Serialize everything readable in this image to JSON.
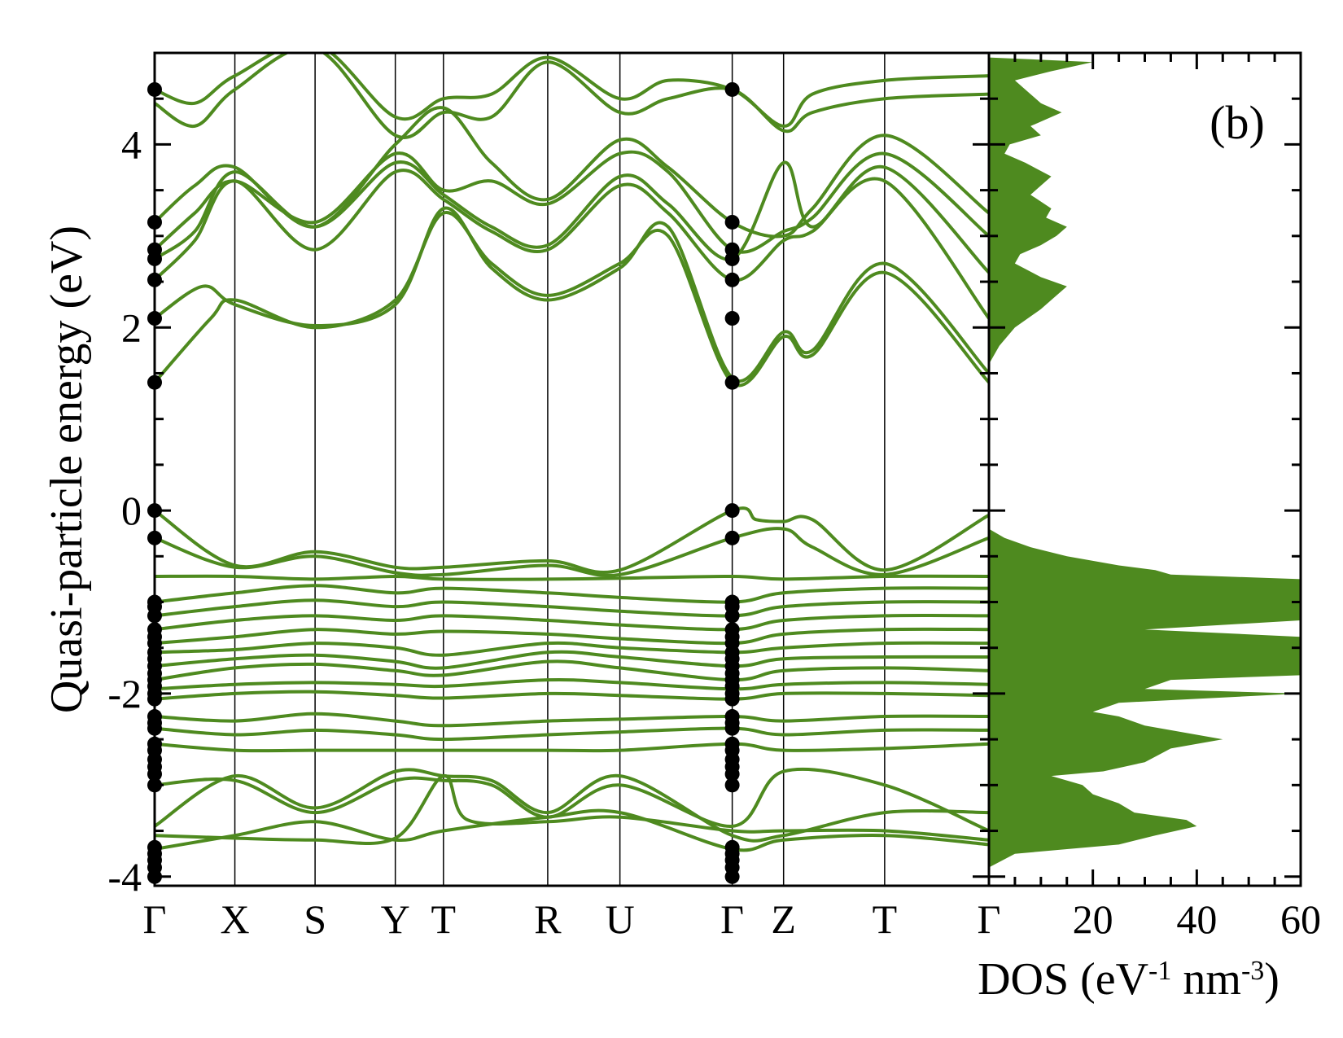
{
  "chart_data": [
    {
      "type": "line",
      "subtype": "band-structure",
      "ylabel": "Quasi-particle energy (eV)",
      "ylim": [
        -4.1,
        5.0
      ],
      "yticks": [
        -4,
        -2,
        0,
        2,
        4
      ],
      "ytick_labels": [
        "-4",
        "-2",
        "0",
        "2",
        "4"
      ],
      "kpoints": [
        {
          "label": "Γ",
          "pos": 0.0
        },
        {
          "label": "X",
          "pos": 0.5
        },
        {
          "label": "S",
          "pos": 1.0
        },
        {
          "label": "Y",
          "pos": 1.5
        },
        {
          "label": "T",
          "pos": 1.8
        },
        {
          "label": "R",
          "pos": 2.45
        },
        {
          "label": "U",
          "pos": 2.9
        },
        {
          "label": "Γ",
          "pos": 3.6
        },
        {
          "label": "Z",
          "pos": 3.92
        },
        {
          "label": "T",
          "pos": 4.55
        },
        {
          "label": "Γ",
          "pos": 5.2
        }
      ],
      "line_color": "#4e8a1f",
      "gamma_points": {
        "color": "#000000",
        "energies": [
          4.6,
          3.15,
          2.85,
          2.75,
          2.52,
          2.1,
          1.4,
          0.0,
          -0.3,
          -1.0,
          -1.05,
          -1.15,
          -1.3,
          -1.38,
          -1.45,
          -1.55,
          -1.62,
          -1.7,
          -1.78,
          -1.85,
          -1.92,
          -2.0,
          -2.06,
          -2.25,
          -2.32,
          -2.38,
          -2.55,
          -2.62,
          -2.72,
          -2.8,
          -2.88,
          -3.0,
          -3.68,
          -3.75,
          -3.82,
          -3.9,
          -4.0
        ]
      },
      "bands": [
        {
          "x": [
            0,
            0.35,
            0.5,
            1.0,
            1.5,
            1.8,
            2.1,
            2.45,
            2.9,
            3.2,
            3.6,
            3.92,
            4.1,
            4.55,
            5.2
          ],
          "y": [
            1.4,
            2.1,
            2.3,
            2.0,
            2.3,
            3.25,
            2.7,
            2.35,
            2.7,
            3.0,
            1.4,
            1.9,
            1.7,
            2.6,
            1.4
          ]
        },
        {
          "x": [
            0,
            0.3,
            0.5,
            1.0,
            1.5,
            1.8,
            2.1,
            2.45,
            2.9,
            3.2,
            3.6,
            3.92,
            4.1,
            4.55,
            5.2
          ],
          "y": [
            2.1,
            2.45,
            2.25,
            2.02,
            2.25,
            3.3,
            2.65,
            2.3,
            2.65,
            3.1,
            1.45,
            1.95,
            1.75,
            2.7,
            1.5
          ]
        },
        {
          "x": [
            0,
            0.25,
            0.5,
            1.0,
            1.5,
            1.8,
            2.1,
            2.45,
            2.9,
            3.2,
            3.6,
            3.92,
            4.1,
            4.55,
            5.2
          ],
          "y": [
            2.52,
            2.95,
            3.6,
            2.85,
            3.7,
            3.4,
            3.05,
            2.85,
            3.55,
            3.25,
            2.52,
            2.95,
            3.05,
            3.6,
            2.1
          ]
        },
        {
          "x": [
            0,
            0.25,
            0.5,
            1.0,
            1.5,
            1.8,
            2.1,
            2.45,
            2.9,
            3.2,
            3.6,
            3.92,
            4.1,
            4.55,
            5.2
          ],
          "y": [
            2.75,
            3.05,
            3.7,
            3.1,
            3.8,
            3.45,
            3.1,
            2.9,
            3.65,
            3.35,
            2.75,
            3.8,
            3.1,
            3.75,
            2.6
          ]
        },
        {
          "x": [
            0,
            0.25,
            0.5,
            1.0,
            1.5,
            1.8,
            2.1,
            2.45,
            2.9,
            3.2,
            3.6,
            3.92,
            4.1,
            4.55,
            5.2
          ],
          "y": [
            2.85,
            3.25,
            3.6,
            3.15,
            3.9,
            3.5,
            3.6,
            3.35,
            3.9,
            3.7,
            2.85,
            3.05,
            3.2,
            3.9,
            3.0
          ]
        },
        {
          "x": [
            0,
            0.25,
            0.5,
            1.0,
            1.5,
            1.8,
            2.1,
            2.45,
            2.9,
            3.2,
            3.6,
            3.92,
            4.1,
            4.55,
            5.2
          ],
          "y": [
            3.15,
            3.55,
            3.75,
            3.1,
            4.0,
            4.4,
            3.8,
            3.4,
            4.05,
            3.75,
            3.15,
            3.0,
            3.3,
            4.1,
            3.25
          ]
        },
        {
          "x": [
            0,
            0.25,
            0.5,
            1.0,
            1.5,
            1.8,
            2.1,
            2.45,
            2.9,
            3.2,
            3.6,
            3.92,
            4.1,
            4.55,
            5.2
          ],
          "y": [
            4.45,
            4.2,
            4.6,
            5.05,
            4.1,
            4.35,
            4.3,
            4.9,
            4.35,
            4.5,
            4.6,
            4.15,
            4.35,
            4.5,
            4.55
          ]
        },
        {
          "x": [
            0,
            0.25,
            0.5,
            1.0,
            1.5,
            1.8,
            2.1,
            2.45,
            2.9,
            3.2,
            3.6,
            3.92,
            4.1,
            4.55,
            5.2
          ],
          "y": [
            4.6,
            4.45,
            4.75,
            5.1,
            4.3,
            4.5,
            4.55,
            4.95,
            4.5,
            4.7,
            4.6,
            4.2,
            4.55,
            4.7,
            4.75
          ]
        },
        {
          "x": [
            0,
            0.5,
            1.0,
            1.5,
            1.8,
            2.45,
            2.9,
            3.6,
            3.75,
            3.92,
            4.1,
            4.55,
            5.2
          ],
          "y": [
            0.0,
            -0.6,
            -0.45,
            -0.62,
            -0.62,
            -0.55,
            -0.65,
            0.0,
            -0.1,
            -0.12,
            -0.1,
            -0.65,
            -0.05
          ]
        },
        {
          "x": [
            0,
            0.5,
            1.0,
            1.5,
            1.8,
            2.45,
            2.9,
            3.6,
            3.92,
            4.1,
            4.55,
            5.2
          ],
          "y": [
            -0.3,
            -0.62,
            -0.5,
            -0.68,
            -0.7,
            -0.6,
            -0.7,
            -0.3,
            -0.2,
            -0.4,
            -0.7,
            -0.3
          ]
        },
        {
          "x": [
            0,
            0.5,
            1.0,
            1.5,
            1.8,
            2.45,
            2.9,
            3.6,
            3.92,
            4.55,
            5.2
          ],
          "y": [
            -0.72,
            -0.72,
            -0.75,
            -0.72,
            -0.75,
            -0.75,
            -0.74,
            -0.72,
            -0.75,
            -0.72,
            -0.72
          ]
        },
        {
          "x": [
            0,
            0.5,
            1.0,
            1.5,
            1.8,
            2.45,
            2.9,
            3.6,
            3.92,
            4.55,
            5.2
          ],
          "y": [
            -1.0,
            -0.9,
            -0.82,
            -0.9,
            -0.85,
            -0.9,
            -0.95,
            -1.0,
            -0.9,
            -0.85,
            -0.85
          ]
        },
        {
          "x": [
            0,
            0.5,
            1.0,
            1.5,
            1.8,
            2.45,
            2.9,
            3.6,
            3.92,
            4.55,
            5.2
          ],
          "y": [
            -1.15,
            -1.05,
            -0.98,
            -1.05,
            -1.0,
            -1.05,
            -1.1,
            -1.15,
            -1.05,
            -1.0,
            -1.0
          ]
        },
        {
          "x": [
            0,
            0.5,
            1.0,
            1.5,
            1.8,
            2.45,
            2.9,
            3.6,
            3.92,
            4.55,
            5.2
          ],
          "y": [
            -1.3,
            -1.2,
            -1.15,
            -1.2,
            -1.15,
            -1.2,
            -1.25,
            -1.3,
            -1.2,
            -1.15,
            -1.15
          ]
        },
        {
          "x": [
            0,
            0.5,
            1.0,
            1.5,
            1.8,
            2.45,
            2.9,
            3.6,
            3.92,
            4.55,
            5.2
          ],
          "y": [
            -1.45,
            -1.38,
            -1.3,
            -1.35,
            -1.32,
            -1.35,
            -1.4,
            -1.45,
            -1.35,
            -1.3,
            -1.3
          ]
        },
        {
          "x": [
            0,
            0.5,
            1.0,
            1.5,
            1.8,
            2.45,
            2.9,
            3.6,
            3.92,
            4.55,
            5.2
          ],
          "y": [
            -1.55,
            -1.52,
            -1.45,
            -1.5,
            -1.58,
            -1.45,
            -1.5,
            -1.55,
            -1.5,
            -1.45,
            -1.45
          ]
        },
        {
          "x": [
            0,
            0.5,
            1.0,
            1.5,
            1.8,
            2.45,
            2.9,
            3.6,
            3.92,
            4.55,
            5.2
          ],
          "y": [
            -1.7,
            -1.62,
            -1.58,
            -1.65,
            -1.72,
            -1.55,
            -1.6,
            -1.7,
            -1.62,
            -1.6,
            -1.6
          ]
        },
        {
          "x": [
            0,
            0.5,
            1.0,
            1.5,
            1.8,
            2.45,
            2.9,
            3.6,
            3.92,
            4.55,
            5.2
          ],
          "y": [
            -1.85,
            -1.72,
            -1.68,
            -1.75,
            -1.8,
            -1.65,
            -1.72,
            -1.85,
            -1.75,
            -1.72,
            -1.75
          ]
        },
        {
          "x": [
            0,
            0.5,
            1.0,
            1.5,
            1.8,
            2.45,
            2.9,
            3.6,
            3.92,
            4.55,
            5.2
          ],
          "y": [
            -1.95,
            -1.9,
            -1.88,
            -1.9,
            -1.92,
            -1.85,
            -1.88,
            -1.95,
            -1.9,
            -1.88,
            -1.9
          ]
        },
        {
          "x": [
            0,
            0.5,
            1.0,
            1.5,
            1.8,
            2.45,
            2.9,
            3.6,
            3.92,
            4.55,
            5.2
          ],
          "y": [
            -2.06,
            -2.0,
            -1.98,
            -2.02,
            -2.05,
            -2.0,
            -2.02,
            -2.06,
            -2.0,
            -2.0,
            -2.02
          ]
        },
        {
          "x": [
            0,
            0.5,
            1.0,
            1.5,
            1.8,
            2.45,
            2.9,
            3.6,
            3.92,
            4.55,
            5.2
          ],
          "y": [
            -2.25,
            -2.3,
            -2.22,
            -2.3,
            -2.35,
            -2.3,
            -2.28,
            -2.25,
            -2.3,
            -2.25,
            -2.25
          ]
        },
        {
          "x": [
            0,
            0.5,
            1.0,
            1.5,
            1.8,
            2.45,
            2.9,
            3.6,
            3.92,
            4.55,
            5.2
          ],
          "y": [
            -2.38,
            -2.45,
            -2.4,
            -2.45,
            -2.5,
            -2.45,
            -2.42,
            -2.38,
            -2.45,
            -2.4,
            -2.4
          ]
        },
        {
          "x": [
            0,
            0.5,
            1.0,
            1.5,
            1.8,
            2.45,
            2.9,
            3.6,
            3.92,
            4.55,
            5.2
          ],
          "y": [
            -2.55,
            -2.62,
            -2.62,
            -2.62,
            -2.62,
            -2.62,
            -2.62,
            -2.55,
            -2.62,
            -2.6,
            -2.55
          ]
        },
        {
          "x": [
            0,
            0.5,
            1.0,
            1.5,
            1.8,
            2.1,
            2.45,
            2.9,
            3.6,
            3.92,
            4.55,
            5.2
          ],
          "y": [
            -3.0,
            -2.95,
            -3.3,
            -2.95,
            -2.95,
            -3.0,
            -3.35,
            -3.0,
            -3.45,
            -2.85,
            -3.0,
            -3.5
          ]
        },
        {
          "x": [
            0,
            0.5,
            1.0,
            1.5,
            1.8,
            2.1,
            2.45,
            2.9,
            3.6,
            3.92,
            4.55,
            5.2
          ],
          "y": [
            -3.45,
            -2.9,
            -3.25,
            -2.85,
            -2.9,
            -2.95,
            -3.3,
            -2.9,
            -3.55,
            -3.55,
            -3.3,
            -3.3
          ]
        },
        {
          "x": [
            0,
            0.5,
            1.0,
            1.5,
            1.8,
            1.95,
            2.45,
            2.9,
            3.6,
            3.92,
            4.55,
            5.2
          ],
          "y": [
            -3.55,
            -3.58,
            -3.6,
            -3.58,
            -2.9,
            -3.38,
            -3.4,
            -3.35,
            -3.5,
            -3.5,
            -3.5,
            -3.6
          ]
        },
        {
          "x": [
            0,
            0.5,
            1.0,
            1.5,
            1.8,
            2.45,
            2.9,
            3.6,
            3.92,
            4.55,
            5.2
          ],
          "y": [
            -3.7,
            -3.55,
            -3.4,
            -3.6,
            -3.5,
            -3.35,
            -3.3,
            -3.7,
            -3.6,
            -3.55,
            -3.65
          ]
        }
      ],
      "panel_label": "(b)"
    },
    {
      "type": "area",
      "xlabel_main": "DOS (eV",
      "xlabel_sup1": "-1",
      "xlabel_mid": " nm",
      "xlabel_sup2": "-3",
      "xlabel_end": ")",
      "xlim": [
        0,
        60
      ],
      "xticks": [
        20,
        40,
        60
      ],
      "xtick_labels": [
        "20",
        "40",
        "60"
      ],
      "ylim": [
        -4.1,
        5.0
      ],
      "color": "#4e8a1f",
      "energy": [
        -3.9,
        -3.75,
        -3.65,
        -3.55,
        -3.45,
        -3.38,
        -3.3,
        -3.2,
        -3.1,
        -3.0,
        -2.9,
        -2.85,
        -2.75,
        -2.6,
        -2.5,
        -2.45,
        -2.35,
        -2.25,
        -2.2,
        -2.1,
        -2.0,
        -1.95,
        -1.85,
        -1.8,
        -1.72,
        -1.6,
        -1.5,
        -1.45,
        -1.38,
        -1.3,
        -1.2,
        -1.1,
        -1.0,
        -0.9,
        -0.8,
        -0.75,
        -0.7,
        -0.65,
        -0.6,
        -0.5,
        -0.4,
        -0.3,
        -0.2,
        1.6,
        1.8,
        2.0,
        2.2,
        2.3,
        2.45,
        2.55,
        2.7,
        2.8,
        2.9,
        3.0,
        3.1,
        3.2,
        3.3,
        3.45,
        3.55,
        3.65,
        3.8,
        3.9,
        4.0,
        4.1,
        4.2,
        4.35,
        4.45,
        4.55,
        4.7,
        4.8,
        4.9,
        4.95
      ],
      "dos": [
        0,
        5,
        25,
        32,
        40,
        38,
        28,
        25,
        20,
        18,
        12,
        22,
        30,
        35,
        45,
        40,
        30,
        25,
        20,
        25,
        60,
        30,
        35,
        60,
        60,
        60,
        60,
        60,
        60,
        30,
        60,
        60,
        60,
        60,
        60,
        60,
        35,
        32,
        25,
        15,
        8,
        3,
        0,
        0,
        2,
        5,
        10,
        12,
        15,
        10,
        5,
        6,
        10,
        13,
        15,
        11,
        12,
        8,
        10,
        12,
        7,
        3,
        4,
        10,
        8,
        14,
        10,
        8,
        5,
        12,
        20,
        0
      ]
    }
  ]
}
